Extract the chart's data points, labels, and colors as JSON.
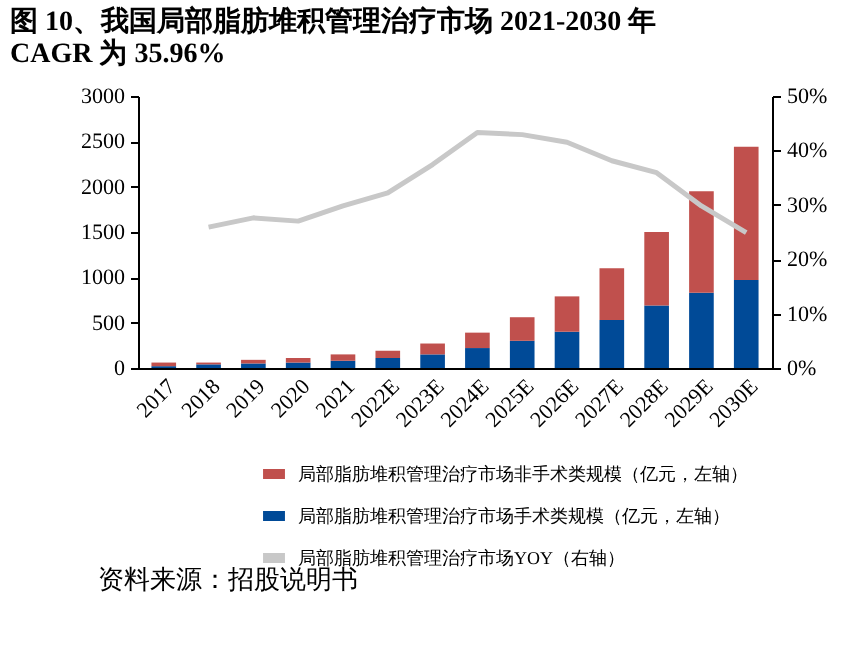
{
  "chart_data": {
    "type": "bar",
    "title": "图 10、我国局部脂肪堆积管理治疗市场 2021-2030 年 CAGR 为 35.96%",
    "categories": [
      "2017",
      "2018",
      "2019",
      "2020",
      "2021",
      "2022E",
      "2023E",
      "2024E",
      "2025E",
      "2026E",
      "2027E",
      "2028E",
      "2029E",
      "2030E"
    ],
    "stacked": true,
    "series": [
      {
        "name": "局部脂肪堆积管理治疗市场手术类规模（亿元，左轴）",
        "color": "#004a97",
        "values": [
          20,
          40,
          50,
          60,
          80,
          110,
          150,
          220,
          300,
          400,
          530,
          690,
          830,
          970
        ]
      },
      {
        "name": "局部脂肪堆积管理治疗市场非手术类规模（亿元，左轴）",
        "color": "#c0504d",
        "values": [
          40,
          20,
          40,
          50,
          70,
          80,
          120,
          170,
          260,
          390,
          570,
          810,
          1120,
          1470
        ]
      },
      {
        "name": "局部脂肪堆积管理治疗市场YOY（右轴）",
        "color": "#c8c8c8",
        "type": "line",
        "axis": "y2",
        "values": [
          null,
          25.9,
          27.6,
          27.0,
          29.8,
          32.2,
          37.4,
          43.3,
          42.9,
          41.5,
          38.1,
          35.9,
          29.8,
          24.9
        ]
      }
    ],
    "ylim": [
      0,
      3000
    ],
    "yticks": [
      0,
      500,
      1000,
      1500,
      2000,
      2500,
      3000
    ],
    "y2lim": [
      0,
      50
    ],
    "y2ticks": [
      {
        "value": 0,
        "label": "0%"
      },
      {
        "value": 10,
        "label": "10%"
      },
      {
        "value": 20,
        "label": "20%"
      },
      {
        "value": 30,
        "label": "30%"
      },
      {
        "value": 40,
        "label": "40%"
      },
      {
        "value": 50,
        "label": "50%"
      }
    ],
    "legend": "bottom",
    "grid": false,
    "annotations": [
      "资料来源：招股说明书"
    ]
  }
}
